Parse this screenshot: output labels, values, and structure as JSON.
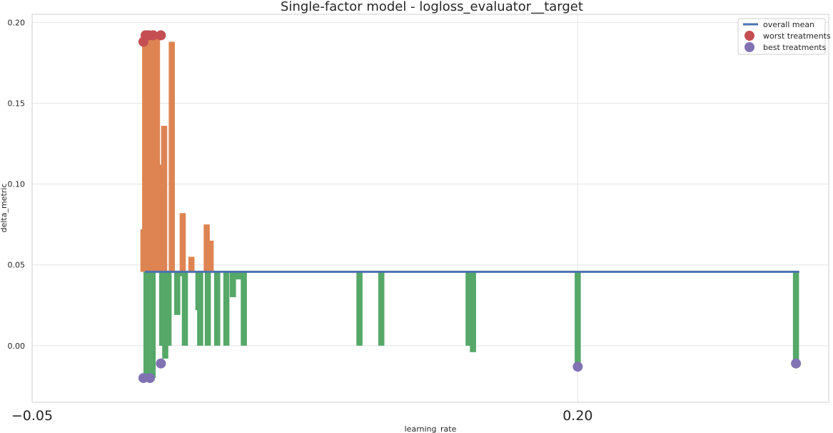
{
  "chart_data": {
    "type": "bar",
    "title": "Single-factor model - logloss_evaluator__target",
    "xlabel": "learning_rate",
    "ylabel": "delta_metric",
    "xlim": [
      -0.05,
      0.315
    ],
    "ylim": [
      -0.035,
      0.205
    ],
    "x_ticks": [
      -0.05,
      0.2
    ],
    "x_tick_labels": [
      "−0.05",
      "0.20"
    ],
    "y_ticks": [
      0.0,
      0.05,
      0.1,
      0.15,
      0.2
    ],
    "y_tick_labels": [
      "0.00",
      "0.05",
      "0.10",
      "0.15",
      "0.20"
    ],
    "grid": true,
    "legend_position": "top-right",
    "overall_mean": 0.0457,
    "mean_line_x": [
      0.0017,
      0.3015
    ],
    "bar_width": 0.0028,
    "colors": {
      "above": "#dd8452",
      "below": "#55a868",
      "mean_line": "#4c72b0",
      "worst": "#c44e52",
      "best": "#8172b3",
      "grid": "#e5e5e5",
      "axes": "#cccccc"
    },
    "bars": [
      {
        "x": 0.001,
        "y": 0.072
      },
      {
        "x": 0.0018,
        "y": 0.188
      },
      {
        "x": 0.0024,
        "y": -0.02
      },
      {
        "x": 0.0032,
        "y": 0.192
      },
      {
        "x": 0.004,
        "y": 0.192
      },
      {
        "x": 0.0048,
        "y": 0.09
      },
      {
        "x": 0.0052,
        "y": -0.02
      },
      {
        "x": 0.006,
        "y": 0.192
      },
      {
        "x": 0.0072,
        "y": 0.192
      },
      {
        "x": 0.0083,
        "y": 0.112
      },
      {
        "x": 0.0096,
        "y": 0.0
      },
      {
        "x": 0.0105,
        "y": 0.136
      },
      {
        "x": 0.011,
        "y": -0.008
      },
      {
        "x": 0.0125,
        "y": 0.0
      },
      {
        "x": 0.014,
        "y": 0.188
      },
      {
        "x": 0.0165,
        "y": 0.019
      },
      {
        "x": 0.018,
        "y": 0.043
      },
      {
        "x": 0.019,
        "y": 0.082
      },
      {
        "x": 0.02,
        "y": 0.0
      },
      {
        "x": 0.023,
        "y": 0.055
      },
      {
        "x": 0.0262,
        "y": 0.022
      },
      {
        "x": 0.027,
        "y": 0.0
      },
      {
        "x": 0.03,
        "y": 0.075
      },
      {
        "x": 0.0305,
        "y": 0.0
      },
      {
        "x": 0.0318,
        "y": 0.065
      },
      {
        "x": 0.0348,
        "y": 0.0
      },
      {
        "x": 0.039,
        "y": 0.0
      },
      {
        "x": 0.042,
        "y": 0.03
      },
      {
        "x": 0.0445,
        "y": 0.041
      },
      {
        "x": 0.047,
        "y": 0.0
      },
      {
        "x": 0.1,
        "y": 0.0
      },
      {
        "x": 0.11,
        "y": 0.0
      },
      {
        "x": 0.15,
        "y": 0.0
      },
      {
        "x": 0.152,
        "y": -0.004
      },
      {
        "x": 0.2,
        "y": -0.013
      },
      {
        "x": 0.3,
        "y": -0.011
      }
    ],
    "worst_points": [
      {
        "x": 0.001,
        "y": 0.188
      },
      {
        "x": 0.002,
        "y": 0.192
      },
      {
        "x": 0.0035,
        "y": 0.192
      },
      {
        "x": 0.0055,
        "y": 0.192
      },
      {
        "x": 0.009,
        "y": 0.192
      }
    ],
    "best_points": [
      {
        "x": 0.001,
        "y": -0.02
      },
      {
        "x": 0.004,
        "y": -0.02
      },
      {
        "x": 0.009,
        "y": -0.011
      },
      {
        "x": 0.2,
        "y": -0.013
      },
      {
        "x": 0.3,
        "y": -0.011
      }
    ],
    "legend": [
      {
        "label": "overall mean",
        "kind": "line",
        "color_key": "mean_line"
      },
      {
        "label": "worst treatments",
        "kind": "dot",
        "color_key": "worst"
      },
      {
        "label": "best treatments",
        "kind": "dot",
        "color_key": "best"
      }
    ]
  }
}
